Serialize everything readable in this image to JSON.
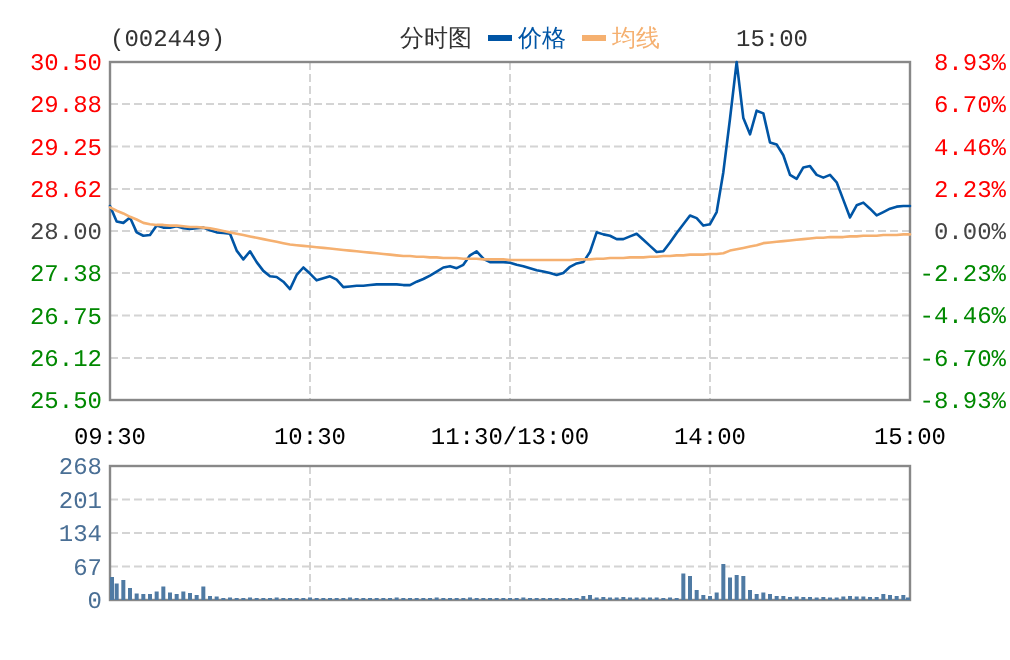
{
  "chart_data": [
    {
      "type": "line",
      "title": "(002449)",
      "subtitle": "分时图",
      "annotations": [
        "15:00"
      ],
      "legend": "top",
      "grid": true,
      "categories": [
        "09:30",
        null,
        null,
        null,
        null,
        null,
        null,
        null,
        null,
        null,
        null,
        null,
        null,
        null,
        null,
        null,
        null,
        null,
        null,
        null,
        null,
        null,
        null,
        null,
        null,
        null,
        null,
        null,
        null,
        null,
        "10:30",
        null,
        null,
        null,
        null,
        null,
        null,
        null,
        null,
        null,
        null,
        null,
        null,
        null,
        null,
        null,
        null,
        null,
        null,
        null,
        null,
        null,
        null,
        null,
        null,
        null,
        null,
        null,
        null,
        null,
        "11:30/13:00",
        null,
        null,
        null,
        null,
        null,
        null,
        null,
        null,
        null,
        null,
        null,
        null,
        null,
        null,
        null,
        null,
        null,
        null,
        null,
        null,
        null,
        null,
        null,
        null,
        null,
        null,
        null,
        null,
        null,
        "14:00",
        null,
        null,
        null,
        null,
        null,
        null,
        null,
        null,
        null,
        null,
        null,
        null,
        null,
        null,
        null,
        null,
        null,
        null,
        null,
        null,
        null,
        null,
        null,
        null,
        null,
        null,
        null,
        null,
        null,
        "15:00"
      ],
      "ylim": [
        25.5,
        30.5
      ],
      "yticks": [
        {
          "value": 25.5,
          "label": "25.50"
        },
        26.12,
        26.75,
        27.38,
        {
          "value": 28,
          "label": "28.00"
        },
        28.62,
        29.25,
        29.88,
        {
          "value": 30.5,
          "label": "30.50"
        }
      ],
      "y2lim": [
        -8.93,
        8.93
      ],
      "y2ticks": [
        {
          "value": -8.93,
          "label": "-8.93%"
        },
        {
          "value": -6.7,
          "label": "-6.70%"
        },
        {
          "value": -4.46,
          "label": "-4.46%"
        },
        {
          "value": -2.23,
          "label": "-2.23%"
        },
        {
          "value": 0,
          "label": "0.00%"
        },
        {
          "value": 2.23,
          "label": "2.23%"
        },
        {
          "value": 4.46,
          "label": "4.46%"
        },
        {
          "value": 6.7,
          "label": "6.70%"
        },
        {
          "value": 8.93,
          "label": "8.93%"
        }
      ],
      "series": [
        {
          "name": "价格",
          "color": "#0055a5",
          "values": [
            28.37,
            28.14,
            28.12,
            28.2,
            27.98,
            27.93,
            27.94,
            28.08,
            28.05,
            28.05,
            28.07,
            28.04,
            28.03,
            28.04,
            28.05,
            28.01,
            27.98,
            27.97,
            27.96,
            27.71,
            27.58,
            27.7,
            27.54,
            27.41,
            27.33,
            27.32,
            27.25,
            27.14,
            27.35,
            27.46,
            27.37,
            27.27,
            27.3,
            27.33,
            27.28,
            27.17,
            27.18,
            27.19,
            27.19,
            27.2,
            27.21,
            27.21,
            27.21,
            27.21,
            27.2,
            27.2,
            27.25,
            27.29,
            27.34,
            27.4,
            27.46,
            27.48,
            27.45,
            27.5,
            27.64,
            27.7,
            27.59,
            27.54,
            27.54,
            27.54,
            27.53,
            27.5,
            27.48,
            27.45,
            27.42,
            27.4,
            27.38,
            27.35,
            27.38,
            27.47,
            27.52,
            27.54,
            27.69,
            27.98,
            27.95,
            27.93,
            27.88,
            27.88,
            27.92,
            27.96,
            27.87,
            27.78,
            27.69,
            27.7,
            27.83,
            27.97,
            28.1,
            28.23,
            28.19,
            28.08,
            28.1,
            28.28,
            28.87,
            29.66,
            30.5,
            29.67,
            29.43,
            29.78,
            29.74,
            29.31,
            29.28,
            29.12,
            28.83,
            28.77,
            28.94,
            28.96,
            28.83,
            28.79,
            28.83,
            28.72,
            28.46,
            28.2,
            28.38,
            28.42,
            28.33,
            28.23,
            28.28,
            28.33,
            28.36,
            28.37,
            28.37
          ]
        },
        {
          "name": "均线",
          "color": "#f5b070",
          "values": [
            28.35,
            28.3,
            28.26,
            28.21,
            28.17,
            28.12,
            28.1,
            28.09,
            28.09,
            28.08,
            28.08,
            28.07,
            28.06,
            28.06,
            28.05,
            28.04,
            28.02,
            28.0,
            27.98,
            27.96,
            27.94,
            27.92,
            27.9,
            27.88,
            27.86,
            27.84,
            27.82,
            27.8,
            27.79,
            27.78,
            27.77,
            27.76,
            27.75,
            27.74,
            27.73,
            27.72,
            27.71,
            27.7,
            27.69,
            27.68,
            27.67,
            27.66,
            27.65,
            27.64,
            27.63,
            27.63,
            27.62,
            27.62,
            27.61,
            27.61,
            27.6,
            27.6,
            27.6,
            27.59,
            27.59,
            27.59,
            27.58,
            27.58,
            27.58,
            27.58,
            27.57,
            27.57,
            27.57,
            27.57,
            27.57,
            27.57,
            27.57,
            27.57,
            27.57,
            27.57,
            27.58,
            27.58,
            27.58,
            27.59,
            27.59,
            27.6,
            27.6,
            27.6,
            27.61,
            27.61,
            27.61,
            27.62,
            27.62,
            27.63,
            27.63,
            27.64,
            27.64,
            27.65,
            27.65,
            27.65,
            27.66,
            27.66,
            27.67,
            27.71,
            27.73,
            27.75,
            27.77,
            27.79,
            27.82,
            27.83,
            27.84,
            27.85,
            27.86,
            27.87,
            27.88,
            27.89,
            27.9,
            27.9,
            27.91,
            27.91,
            27.91,
            27.92,
            27.92,
            27.93,
            27.93,
            27.93,
            27.94,
            27.94,
            27.94,
            27.95,
            27.95
          ]
        }
      ]
    },
    {
      "type": "bar",
      "grid": true,
      "tick_labels": "y",
      "color": "#4f7aa3",
      "categories": [
        null,
        null,
        null,
        null,
        null,
        null,
        null,
        null,
        null,
        null,
        null,
        null,
        null,
        null,
        null,
        null,
        null,
        null,
        null,
        null,
        null,
        null,
        null,
        null,
        null,
        null,
        null,
        null,
        null,
        null,
        null,
        null,
        null,
        null,
        null,
        null,
        null,
        null,
        null,
        null,
        null,
        null,
        null,
        null,
        null,
        null,
        null,
        null,
        null,
        null,
        null,
        null,
        null,
        null,
        null,
        null,
        null,
        null,
        null,
        null,
        null,
        null,
        null,
        null,
        null,
        null,
        null,
        null,
        null,
        null,
        null,
        null,
        null,
        null,
        null,
        null,
        null,
        null,
        null,
        null,
        null,
        null,
        null,
        null,
        null,
        null,
        null,
        null,
        null,
        null,
        null,
        null,
        null,
        null,
        null,
        null,
        null,
        null,
        null,
        null,
        null,
        null,
        null,
        null,
        null,
        null,
        null,
        null,
        null,
        null,
        null,
        null,
        null,
        null,
        null,
        null,
        null,
        null,
        null,
        null,
        null
      ],
      "ylim": [
        0,
        268
      ],
      "yticks": [
        0,
        67,
        134,
        201,
        268
      ],
      "values": [
        46,
        33,
        40,
        24,
        13,
        12,
        12,
        17,
        27,
        15,
        12,
        17,
        14,
        10,
        27,
        8,
        7,
        4,
        5,
        4,
        4,
        5,
        4,
        4,
        4,
        5,
        4,
        4,
        4,
        4,
        5,
        4,
        4,
        4,
        4,
        4,
        5,
        4,
        4,
        4,
        4,
        4,
        4,
        5,
        4,
        4,
        4,
        4,
        4,
        5,
        4,
        4,
        4,
        4,
        5,
        4,
        4,
        4,
        4,
        4,
        4,
        4,
        5,
        4,
        4,
        4,
        4,
        4,
        4,
        4,
        4,
        8,
        10,
        5,
        6,
        5,
        5,
        6,
        5,
        5,
        5,
        5,
        5,
        4,
        5,
        4,
        53,
        48,
        20,
        10,
        8,
        15,
        72,
        45,
        50,
        48,
        20,
        12,
        15,
        12,
        8,
        8,
        6,
        7,
        6,
        6,
        5,
        6,
        5,
        5,
        7,
        8,
        7,
        7,
        6,
        6,
        12,
        10,
        8,
        10,
        5
      ]
    }
  ]
}
